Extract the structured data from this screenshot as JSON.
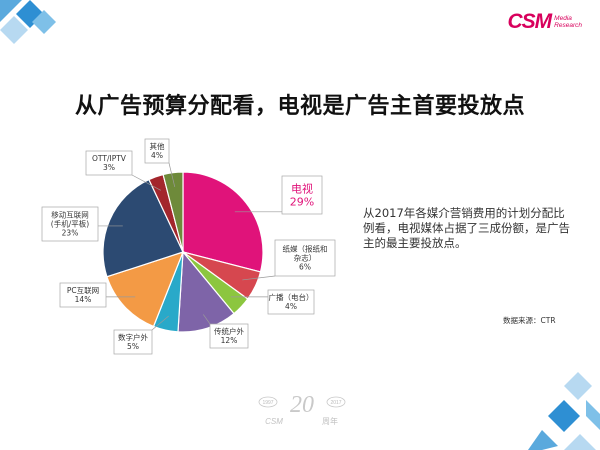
{
  "header": {
    "brand": "CSM",
    "brand_sub": [
      "Media",
      "Research"
    ]
  },
  "title": "从广告预算分配看，电视是广告主首要投放点",
  "description": "从2017年各媒介营销费用的计划分配比例看，电视媒体占据了三成份额，是广告主的最主要投放点。",
  "source": "数据来源：CTR",
  "footer": {
    "anniversary": "CSM 20 周年",
    "years": [
      "1997",
      "2017"
    ]
  },
  "chart_data": {
    "type": "pie",
    "title": "",
    "start_angle_deg": 0,
    "slices": [
      {
        "label": "电视",
        "value": 29,
        "value_label": "29%",
        "color": "#e0137a"
      },
      {
        "label": "纸媒（报纸和杂志）",
        "value": 6,
        "value_label": "6%",
        "color": "#d6474f"
      },
      {
        "label": "广播（电台）",
        "value": 4,
        "value_label": "4%",
        "color": "#8cc63f"
      },
      {
        "label": "传统户外",
        "value": 12,
        "value_label": "12%",
        "color": "#7e64a8"
      },
      {
        "label": "数字户外",
        "value": 5,
        "value_label": "5%",
        "color": "#29a9c9"
      },
      {
        "label": "PC互联网",
        "value": 14,
        "value_label": "14%",
        "color": "#f39a45"
      },
      {
        "label": "移动互联网（手机/平板）",
        "value": 23,
        "value_label": "23%",
        "color": "#2c4a72"
      },
      {
        "label": "OTT/IPTV",
        "value": 3,
        "value_label": "3%",
        "color": "#a3262c"
      },
      {
        "label": "其他",
        "value": 4,
        "value_label": "4%",
        "color": "#6e8a3a"
      }
    ],
    "label_lines": [
      [
        "电视"
      ],
      [
        "纸媒（报纸和",
        "杂志）"
      ],
      [
        "广播（电台）"
      ],
      [
        "传统户外"
      ],
      [
        "数字户外"
      ],
      [
        "PC互联网"
      ],
      [
        "移动互联网",
        "(手机/平板)"
      ],
      [
        "OTT/IPTV"
      ],
      [
        "其他"
      ]
    ],
    "highlight_color": "#e0137a",
    "legend": "none"
  }
}
